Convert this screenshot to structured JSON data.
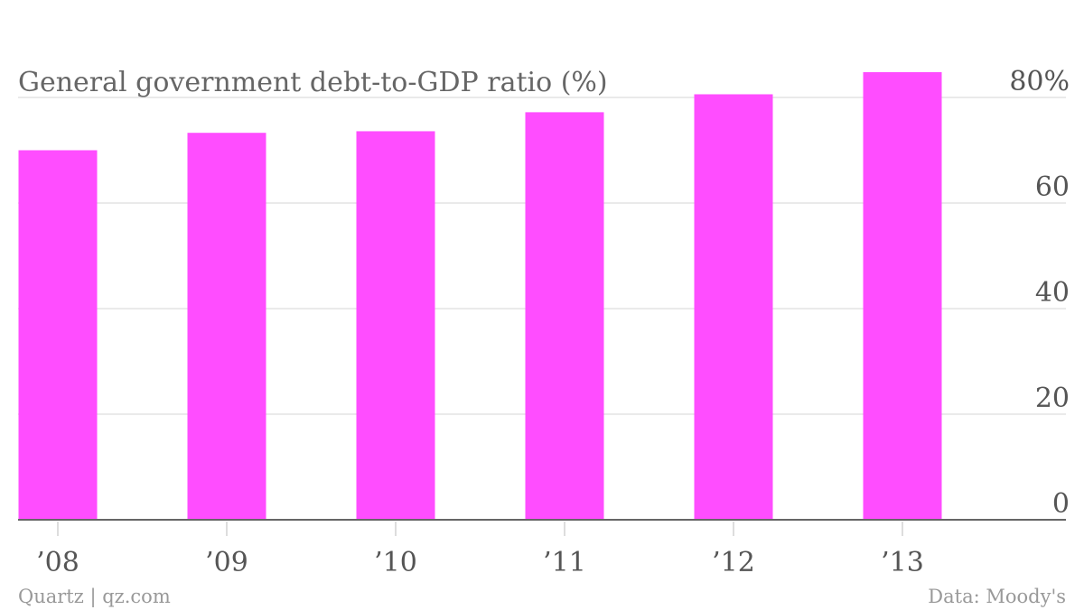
{
  "chart_data": {
    "type": "bar",
    "title": "General government debt-to-GDP ratio (%)",
    "categories": [
      "’08",
      "’09",
      "’10",
      "’11",
      "’12",
      "’13"
    ],
    "values": [
      70.0,
      73.3,
      73.6,
      77.2,
      80.6,
      84.8
    ],
    "ylim": [
      0,
      80
    ],
    "yticks": [
      0,
      20,
      40,
      60,
      80
    ],
    "ytick_labels": [
      "0",
      "20",
      "40",
      "60",
      "80%"
    ],
    "grid": true,
    "y_axis_position": "right",
    "bar_color": "#ff4dff",
    "footer_left": "Quartz | qz.com",
    "footer_right": "Data: Moody's"
  }
}
